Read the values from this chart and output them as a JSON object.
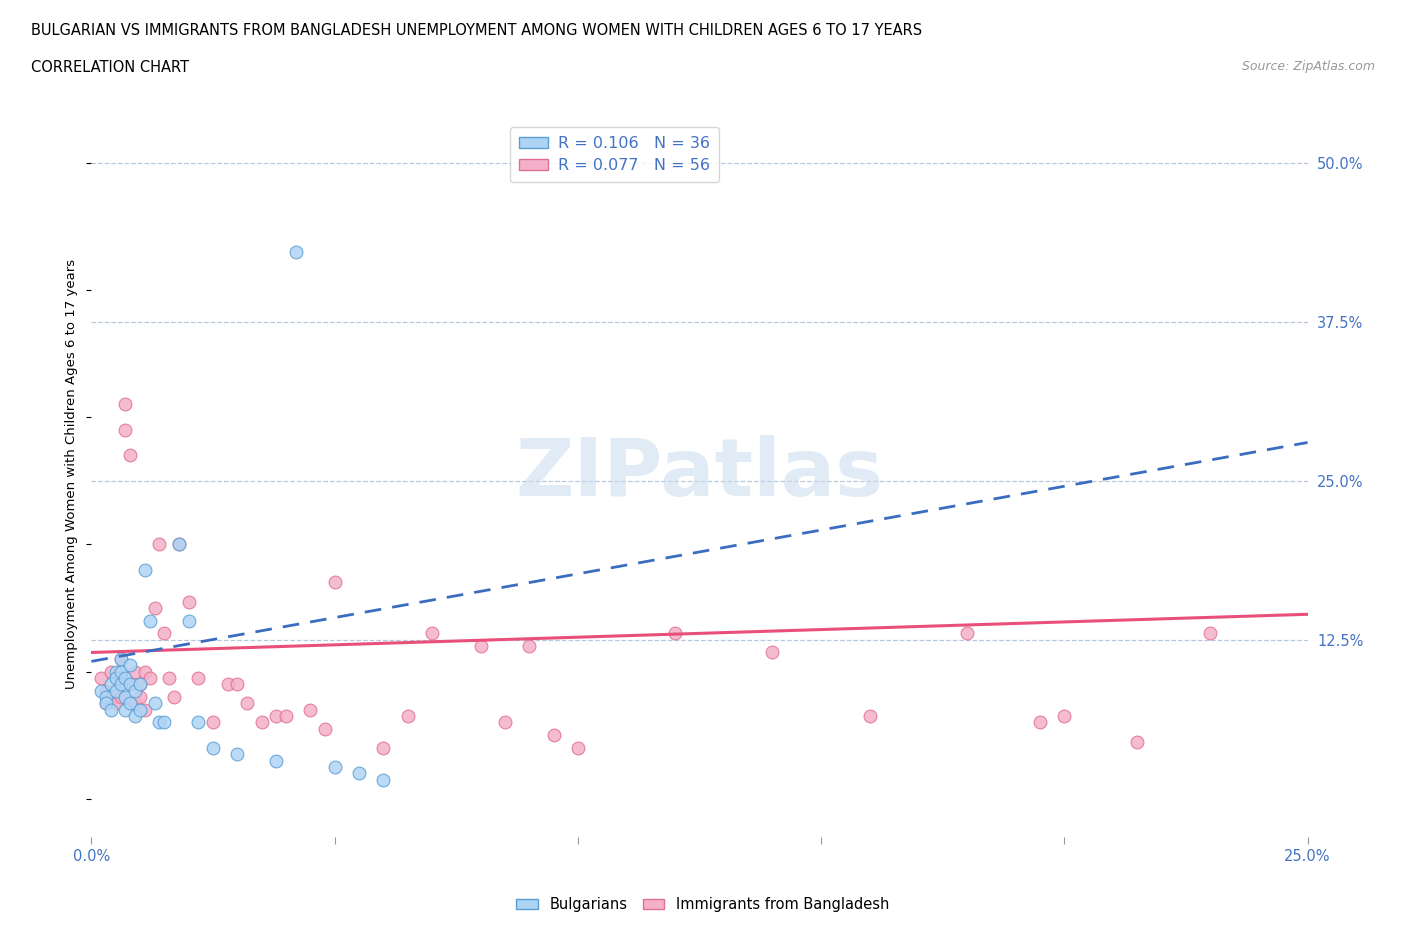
{
  "title_line1": "BULGARIAN VS IMMIGRANTS FROM BANGLADESH UNEMPLOYMENT AMONG WOMEN WITH CHILDREN AGES 6 TO 17 YEARS",
  "title_line2": "CORRELATION CHART",
  "source_text": "Source: ZipAtlas.com",
  "ylabel": "Unemployment Among Women with Children Ages 6 to 17 years",
  "xlim": [
    0.0,
    0.25
  ],
  "ylim": [
    -0.03,
    0.54
  ],
  "y_ticks_right": [
    0.0,
    0.125,
    0.25,
    0.375,
    0.5
  ],
  "y_tick_labels_right": [
    "",
    "12.5%",
    "25.0%",
    "37.5%",
    "50.0%"
  ],
  "bulgarian_color": "#aed4f5",
  "bangladesh_color": "#f4b0c8",
  "bulgarian_edge": "#5a9fd4",
  "bangladesh_edge": "#e07090",
  "trend_blue": "#3a6cc0",
  "trend_pink": "#e8507a",
  "R_bulgarian": 0.106,
  "N_bulgarian": 36,
  "R_bangladesh": 0.077,
  "N_bangladesh": 56,
  "watermark": "ZIPatlas",
  "watermark_color": "#c8dced",
  "bg_color": "#ffffff",
  "grid_color": "#b8c8dc",
  "bulgarian_x": [
    0.002,
    0.003,
    0.003,
    0.004,
    0.004,
    0.005,
    0.005,
    0.005,
    0.006,
    0.006,
    0.006,
    0.007,
    0.007,
    0.007,
    0.008,
    0.008,
    0.008,
    0.009,
    0.009,
    0.01,
    0.01,
    0.011,
    0.012,
    0.013,
    0.014,
    0.015,
    0.018,
    0.02,
    0.022,
    0.025,
    0.03,
    0.038,
    0.042,
    0.05,
    0.055,
    0.06
  ],
  "bulgarian_y": [
    0.085,
    0.08,
    0.075,
    0.09,
    0.07,
    0.1,
    0.095,
    0.085,
    0.11,
    0.1,
    0.09,
    0.095,
    0.08,
    0.07,
    0.105,
    0.09,
    0.075,
    0.085,
    0.065,
    0.09,
    0.07,
    0.18,
    0.14,
    0.075,
    0.06,
    0.06,
    0.2,
    0.14,
    0.06,
    0.04,
    0.035,
    0.03,
    0.43,
    0.025,
    0.02,
    0.015
  ],
  "bangladesh_x": [
    0.002,
    0.003,
    0.003,
    0.004,
    0.004,
    0.005,
    0.005,
    0.005,
    0.006,
    0.006,
    0.006,
    0.007,
    0.007,
    0.008,
    0.008,
    0.009,
    0.009,
    0.01,
    0.01,
    0.011,
    0.011,
    0.012,
    0.013,
    0.014,
    0.015,
    0.016,
    0.017,
    0.018,
    0.02,
    0.022,
    0.025,
    0.028,
    0.03,
    0.032,
    0.035,
    0.038,
    0.04,
    0.045,
    0.048,
    0.05,
    0.06,
    0.065,
    0.07,
    0.08,
    0.085,
    0.09,
    0.095,
    0.1,
    0.12,
    0.14,
    0.16,
    0.18,
    0.195,
    0.2,
    0.215,
    0.23
  ],
  "bangladesh_y": [
    0.095,
    0.085,
    0.075,
    0.1,
    0.08,
    0.095,
    0.085,
    0.075,
    0.11,
    0.095,
    0.08,
    0.29,
    0.31,
    0.27,
    0.09,
    0.1,
    0.075,
    0.09,
    0.08,
    0.1,
    0.07,
    0.095,
    0.15,
    0.2,
    0.13,
    0.095,
    0.08,
    0.2,
    0.155,
    0.095,
    0.06,
    0.09,
    0.09,
    0.075,
    0.06,
    0.065,
    0.065,
    0.07,
    0.055,
    0.17,
    0.04,
    0.065,
    0.13,
    0.12,
    0.06,
    0.12,
    0.05,
    0.04,
    0.13,
    0.115,
    0.065,
    0.13,
    0.06,
    0.065,
    0.045,
    0.13
  ],
  "trend_blue_x0": 0.0,
  "trend_blue_y0": 0.108,
  "trend_blue_x1": 0.25,
  "trend_blue_y1": 0.28,
  "trend_pink_x0": 0.0,
  "trend_pink_y0": 0.115,
  "trend_pink_x1": 0.25,
  "trend_pink_y1": 0.145
}
